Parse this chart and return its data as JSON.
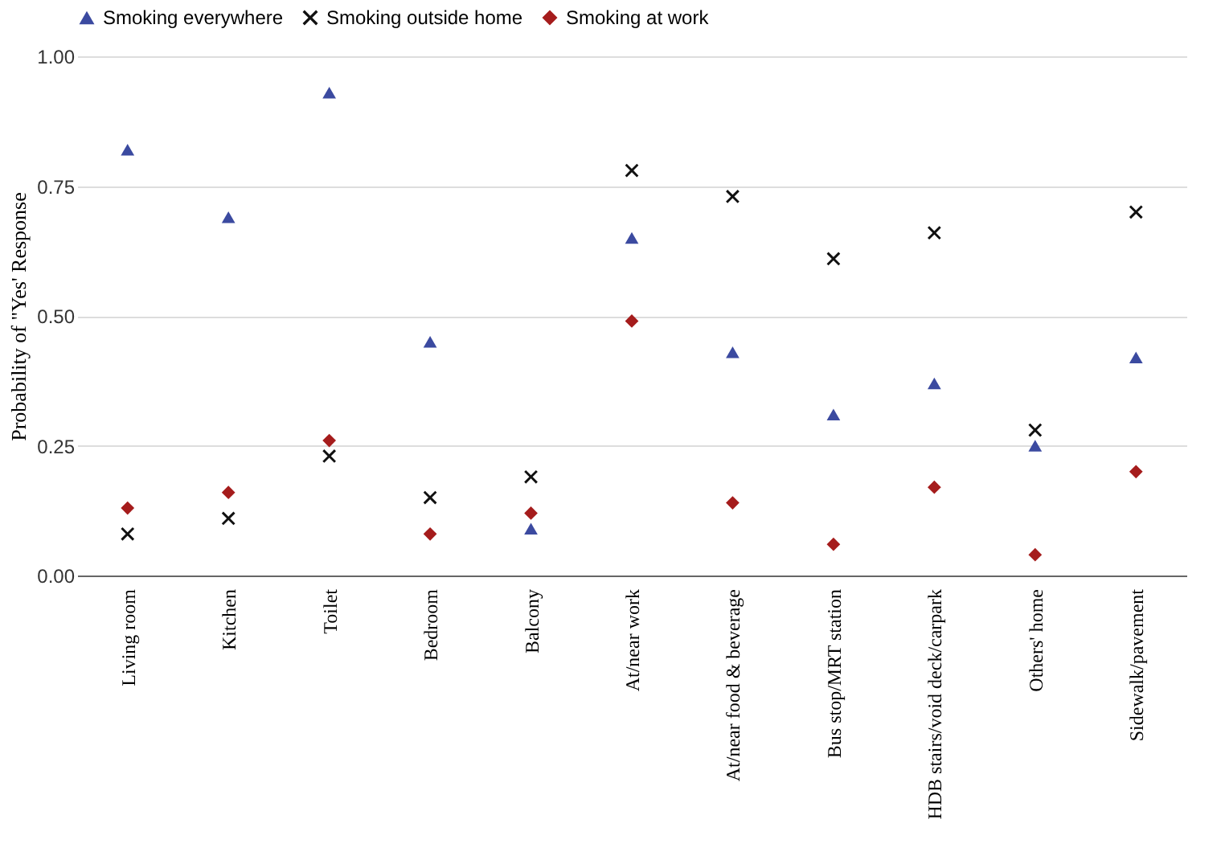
{
  "chart_data": {
    "type": "scatter",
    "ylabel": "Probability of \"Yes' Response",
    "categories": [
      "Living room",
      "Kitchen",
      "Toilet",
      "Bedroom",
      "Balcony",
      "At/near work",
      "At/near food & beverage",
      "Bus stop/MRT station",
      "HDB stairs/void deck/carpark",
      "Others' home",
      "Sidewalk/pavement"
    ],
    "series": [
      {
        "name": "Smoking everywhere",
        "color": "#3b4aa0",
        "marker": "triangle",
        "values": [
          0.82,
          0.69,
          0.93,
          0.45,
          0.09,
          0.65,
          0.43,
          0.31,
          0.37,
          0.25,
          0.42
        ]
      },
      {
        "name": "Smoking outside home",
        "color": "#111111",
        "marker": "cross",
        "values": [
          0.08,
          0.11,
          0.23,
          0.15,
          0.19,
          0.78,
          0.73,
          0.61,
          0.66,
          0.28,
          0.7
        ]
      },
      {
        "name": "Smoking at work",
        "color": "#a51c1c",
        "marker": "diamond",
        "values": [
          0.13,
          0.16,
          0.26,
          0.08,
          0.12,
          0.49,
          0.14,
          0.06,
          0.17,
          0.04,
          0.2
        ]
      }
    ],
    "ylim": [
      0,
      1
    ],
    "yticks": [
      {
        "value": 0,
        "label": "0.00"
      },
      {
        "value": 0.25,
        "label": "0.25"
      },
      {
        "value": 0.5,
        "label": "0.50"
      },
      {
        "value": 0.75,
        "label": "0.75"
      },
      {
        "value": 1,
        "label": "1.00"
      }
    ],
    "grid": "y",
    "legend": "top"
  }
}
